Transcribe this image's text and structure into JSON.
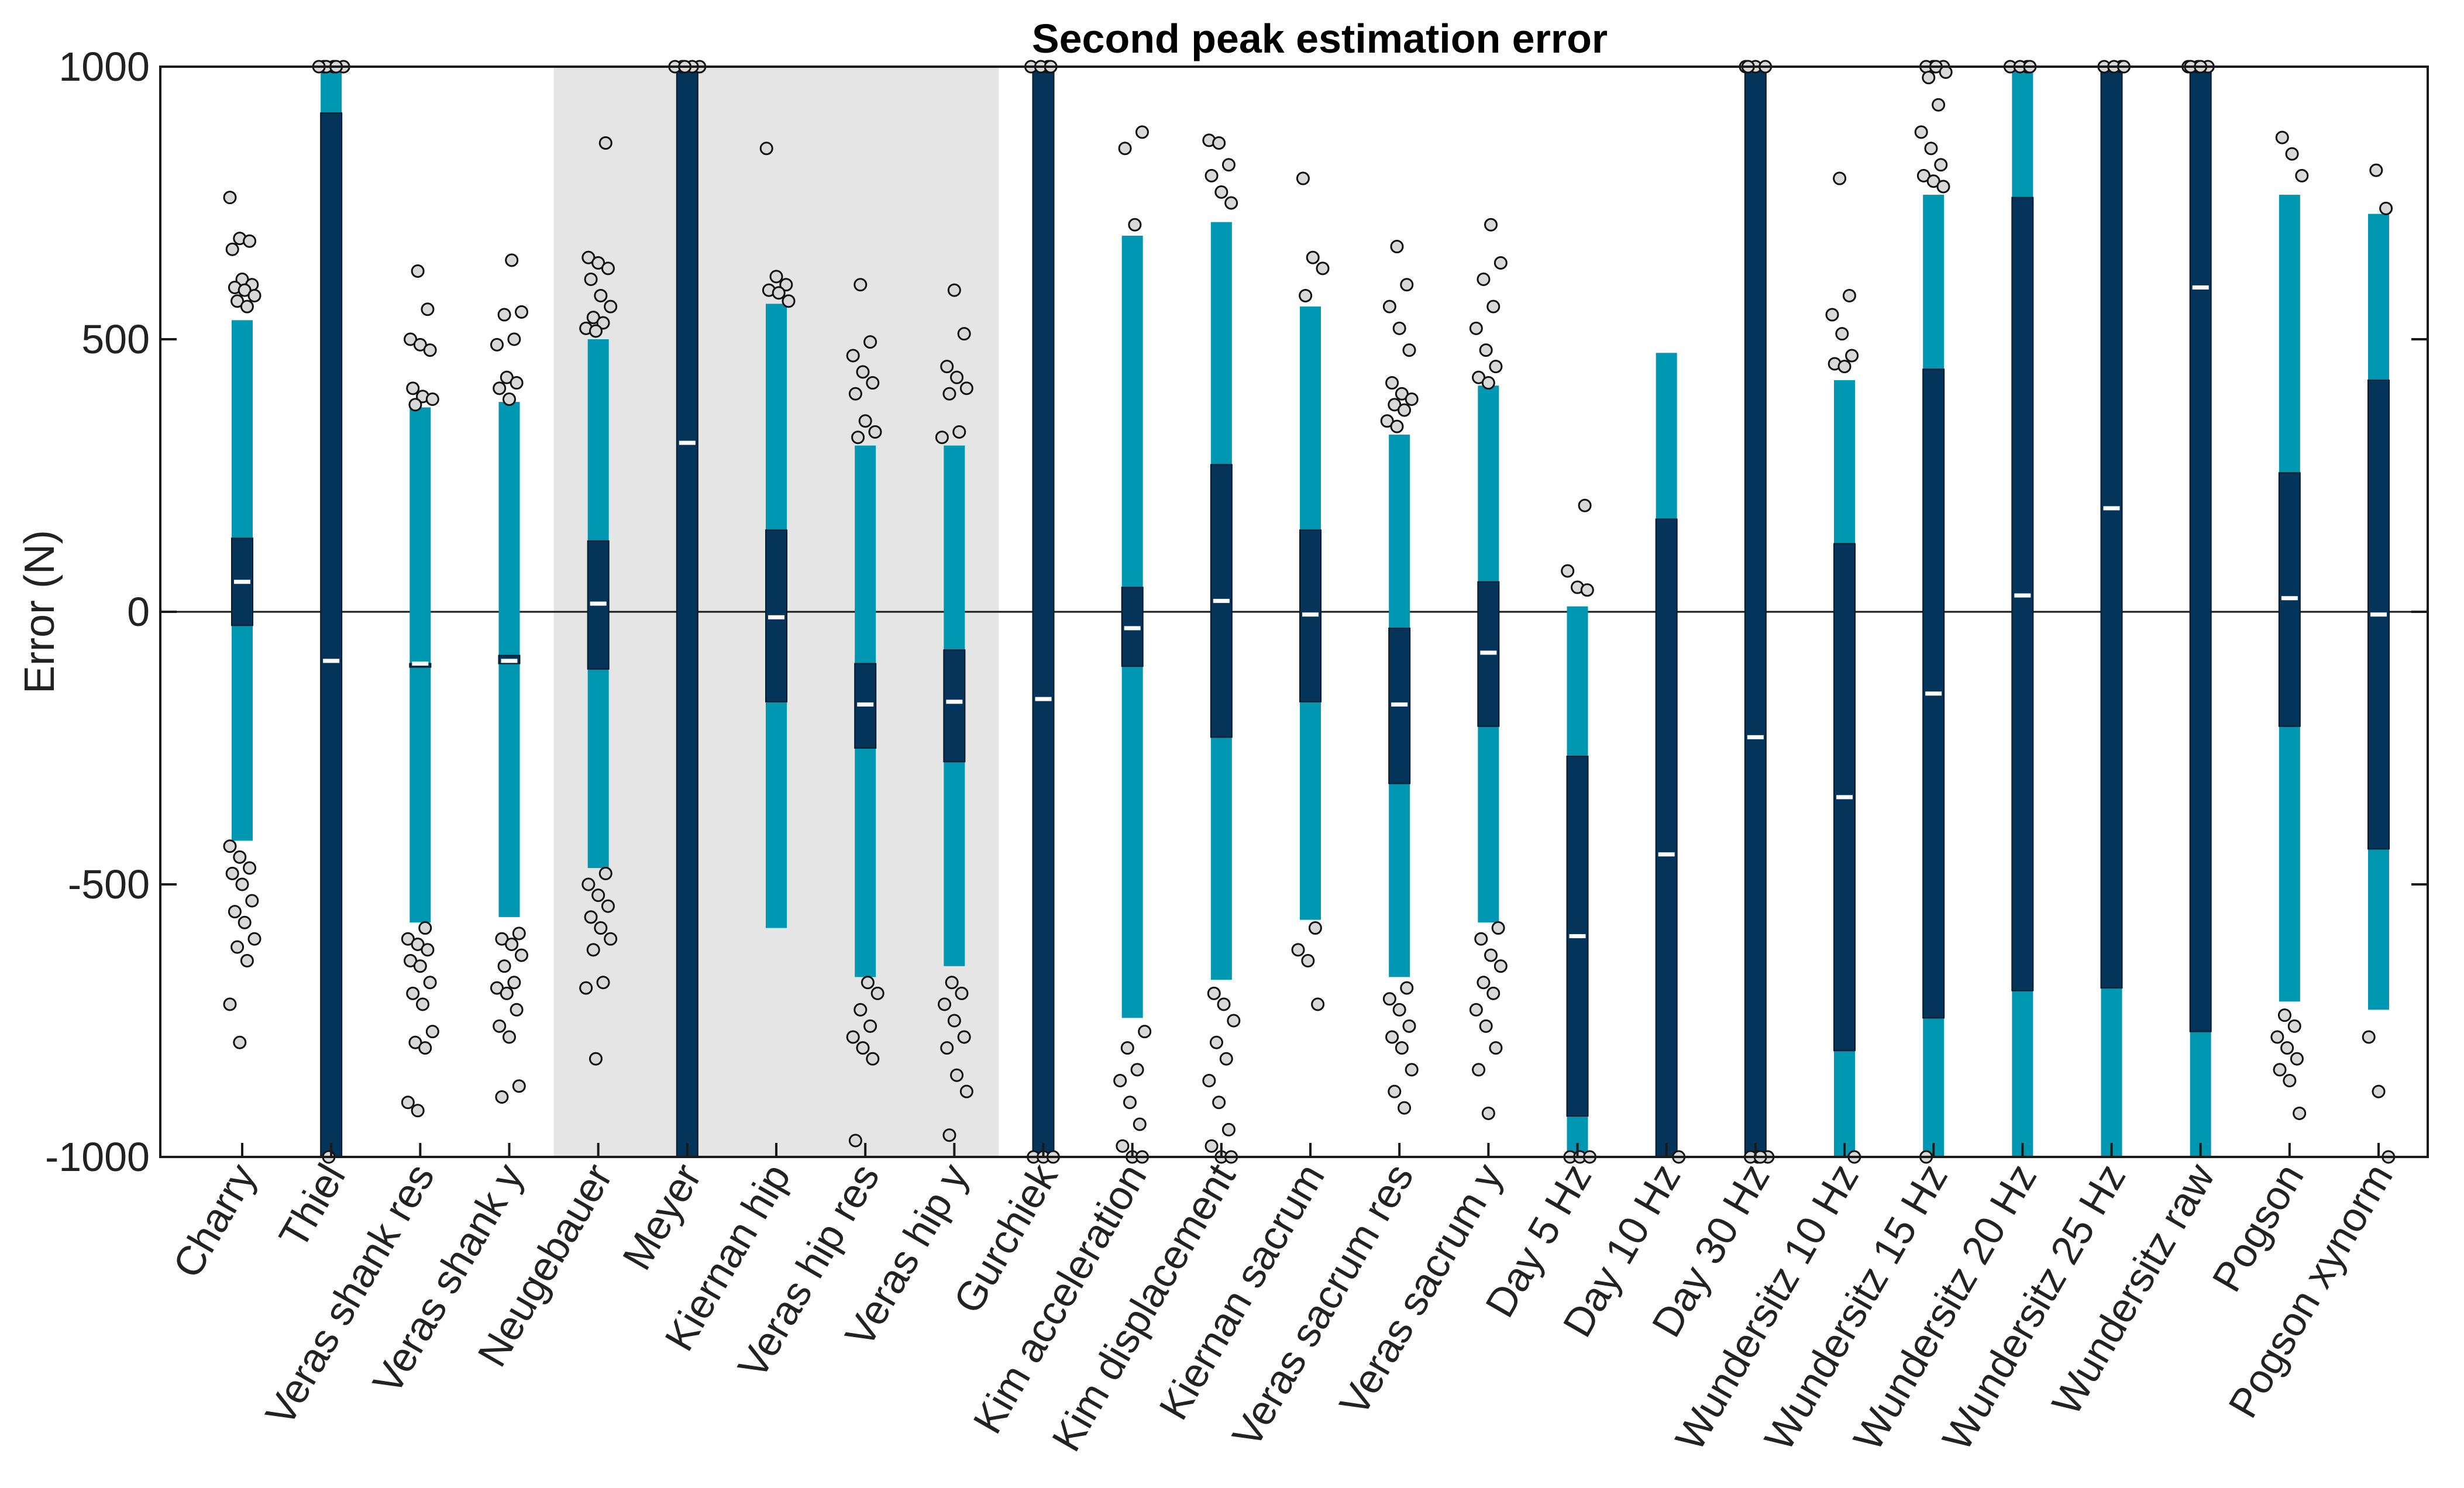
{
  "chart_data": {
    "type": "box",
    "title": "Second peak estimation error",
    "xlabel": "",
    "ylabel": "Error (N)",
    "ylim": [
      -1000,
      1000
    ],
    "yticks": [
      -1000,
      -500,
      0,
      500,
      1000
    ],
    "shaded_groups": [
      {
        "from": "Neugebauer",
        "to": "Veras hip y"
      }
    ],
    "colors": {
      "light": "#0097B2",
      "dark": "#04345A",
      "shade": "#E5E5E5",
      "outlier_fill": "#D9D9D9"
    },
    "categories": [
      "Charry",
      "Thiel",
      "Veras shank res",
      "Veras shank y",
      "Neugebauer",
      "Meyer",
      "Kiernan hip",
      "Veras hip res",
      "Veras hip y",
      "Gurchiek",
      "Kim acceleration",
      "Kim displacement",
      "Kiernan sacrum",
      "Veras sacrum res",
      "Veras sacrum y",
      "Day 5 Hz",
      "Day 10 Hz",
      "Day 30 Hz",
      "Wundersitz 10 Hz",
      "Wundersitz 15 Hz",
      "Wundersitz 20 Hz",
      "Wundersitz 25 Hz",
      "Wundersitz raw",
      "Pogson",
      "Pogson xynorm"
    ],
    "boxes": [
      {
        "name": "Charry",
        "whisker_low": -420,
        "q1": -25,
        "median": 55,
        "q3": 135,
        "whisker_high": 535,
        "outliers": [
          760,
          685,
          680,
          665,
          610,
          600,
          595,
          590,
          580,
          570,
          560,
          -430,
          -450,
          -470,
          -480,
          -500,
          -530,
          -550,
          -570,
          -600,
          -615,
          -640,
          -720,
          -790
        ]
      },
      {
        "name": "Thiel",
        "whisker_low": -1000,
        "q1": -1000,
        "median": -90,
        "q3": 915,
        "whisker_high": 1000,
        "outliers": [
          1000,
          1000,
          1000,
          1000,
          1000,
          1000,
          -1000
        ]
      },
      {
        "name": "Veras shank res",
        "whisker_low": -570,
        "q1": -95,
        "median": -95,
        "q3": -95,
        "whisker_high": 375,
        "outliers": [
          625,
          555,
          500,
          490,
          480,
          410,
          395,
          390,
          380,
          -580,
          -600,
          -610,
          -620,
          -640,
          -650,
          -680,
          -700,
          -720,
          -770,
          -790,
          -800,
          -900,
          -915
        ]
      },
      {
        "name": "Veras shank y",
        "whisker_low": -560,
        "q1": -95,
        "median": -90,
        "q3": -80,
        "whisker_high": 385,
        "outliers": [
          645,
          550,
          545,
          500,
          490,
          430,
          420,
          410,
          390,
          -590,
          -600,
          -610,
          -630,
          -650,
          -680,
          -690,
          -700,
          -730,
          -760,
          -780,
          -870,
          -890
        ]
      },
      {
        "name": "Neugebauer",
        "whisker_low": -470,
        "q1": -105,
        "median": 15,
        "q3": 130,
        "whisker_high": 500,
        "outliers": [
          860,
          650,
          640,
          630,
          610,
          580,
          560,
          540,
          530,
          520,
          515,
          -480,
          -500,
          -520,
          -540,
          -560,
          -580,
          -600,
          -620,
          -680,
          -690,
          -820
        ]
      },
      {
        "name": "Meyer",
        "whisker_low": -1000,
        "q1": -1000,
        "median": 310,
        "q3": 1000,
        "whisker_high": 1000,
        "outliers": [
          1000,
          1000,
          1000,
          1000,
          1000
        ]
      },
      {
        "name": "Kiernan hip",
        "whisker_low": -580,
        "q1": -165,
        "median": -10,
        "q3": 150,
        "whisker_high": 565,
        "outliers": [
          850,
          615,
          600,
          590,
          585,
          570
        ]
      },
      {
        "name": "Veras hip res",
        "whisker_low": -670,
        "q1": -250,
        "median": -170,
        "q3": -95,
        "whisker_high": 305,
        "outliers": [
          600,
          495,
          470,
          440,
          420,
          400,
          350,
          330,
          320,
          -680,
          -700,
          -730,
          -760,
          -780,
          -800,
          -820,
          -970
        ]
      },
      {
        "name": "Veras hip y",
        "whisker_low": -650,
        "q1": -275,
        "median": -165,
        "q3": -70,
        "whisker_high": 305,
        "outliers": [
          590,
          510,
          450,
          430,
          410,
          400,
          330,
          320,
          -680,
          -700,
          -720,
          -750,
          -780,
          -800,
          -850,
          -880,
          -960
        ]
      },
      {
        "name": "Gurchiek",
        "whisker_low": -1000,
        "q1": -1000,
        "median": -160,
        "q3": 1000,
        "whisker_high": 1000,
        "outliers": [
          1000,
          1000,
          1000,
          1000,
          -1000,
          -1000,
          -1000
        ]
      },
      {
        "name": "Kim acceleration",
        "whisker_low": -745,
        "q1": -100,
        "median": -30,
        "q3": 45,
        "whisker_high": 690,
        "outliers": [
          880,
          850,
          710,
          -770,
          -800,
          -840,
          -860,
          -900,
          -940,
          -980,
          -1000,
          -1000
        ]
      },
      {
        "name": "Kim displacement",
        "whisker_low": -675,
        "q1": -230,
        "median": 20,
        "q3": 270,
        "whisker_high": 715,
        "outliers": [
          865,
          860,
          820,
          800,
          770,
          750,
          -700,
          -720,
          -750,
          -790,
          -820,
          -860,
          -900,
          -950,
          -980,
          -1000,
          -1000
        ]
      },
      {
        "name": "Kiernan sacrum",
        "whisker_low": -565,
        "q1": -165,
        "median": -5,
        "q3": 150,
        "whisker_high": 560,
        "outliers": [
          795,
          650,
          630,
          580,
          -580,
          -620,
          -640,
          -720
        ]
      },
      {
        "name": "Veras sacrum res",
        "whisker_low": -670,
        "q1": -315,
        "median": -170,
        "q3": -30,
        "whisker_high": 325,
        "outliers": [
          670,
          600,
          560,
          520,
          480,
          420,
          400,
          390,
          380,
          370,
          350,
          340,
          -690,
          -710,
          -730,
          -760,
          -780,
          -800,
          -840,
          -880,
          -910
        ]
      },
      {
        "name": "Veras sacrum y",
        "whisker_low": -570,
        "q1": -210,
        "median": -75,
        "q3": 55,
        "whisker_high": 415,
        "outliers": [
          710,
          640,
          610,
          560,
          520,
          480,
          450,
          430,
          420,
          -580,
          -600,
          -630,
          -650,
          -680,
          -700,
          -730,
          -760,
          -800,
          -840,
          -920
        ]
      },
      {
        "name": "Day 5 Hz",
        "whisker_low": -1000,
        "q1": -925,
        "median": -595,
        "q3": -265,
        "whisker_high": 10,
        "outliers": [
          195,
          75,
          45,
          40,
          -1000,
          -1000,
          -1000
        ]
      },
      {
        "name": "Day 10 Hz",
        "whisker_low": -1000,
        "q1": -1000,
        "median": -445,
        "q3": 170,
        "whisker_high": 475,
        "outliers": [
          -1000
        ]
      },
      {
        "name": "Day 30 Hz",
        "whisker_low": -1000,
        "q1": -1000,
        "median": -230,
        "q3": 1000,
        "whisker_high": 1000,
        "outliers": [
          1000,
          1000,
          1000,
          1000,
          -1000,
          -1000,
          -1000,
          -1000
        ]
      },
      {
        "name": "Wundersitz 10 Hz",
        "whisker_low": -1000,
        "q1": -805,
        "median": -340,
        "q3": 125,
        "whisker_high": 425,
        "outliers": [
          795,
          580,
          545,
          510,
          470,
          455,
          450,
          -1000
        ]
      },
      {
        "name": "Wundersitz 15 Hz",
        "whisker_low": -1000,
        "q1": -745,
        "median": -150,
        "q3": 445,
        "whisker_high": 765,
        "outliers": [
          1000,
          1000,
          1000,
          1000,
          990,
          980,
          930,
          880,
          850,
          820,
          800,
          790,
          780,
          -1000
        ]
      },
      {
        "name": "Wundersitz 20 Hz",
        "whisker_low": -1000,
        "q1": -695,
        "median": 30,
        "q3": 760,
        "whisker_high": 1000,
        "outliers": [
          1000,
          1000,
          1000,
          1000
        ]
      },
      {
        "name": "Wundersitz 25 Hz",
        "whisker_low": -1000,
        "q1": -690,
        "median": 190,
        "q3": 1000,
        "whisker_high": 1000,
        "outliers": [
          1000,
          1000,
          1000,
          1000
        ]
      },
      {
        "name": "Wundersitz raw",
        "whisker_low": -1000,
        "q1": -770,
        "median": 595,
        "q3": 1000,
        "whisker_high": 1000,
        "outliers": [
          1000,
          1000,
          1000,
          1000,
          1000
        ]
      },
      {
        "name": "Pogson",
        "whisker_low": -715,
        "q1": -210,
        "median": 25,
        "q3": 255,
        "whisker_high": 765,
        "outliers": [
          870,
          840,
          800,
          -740,
          -760,
          -780,
          -800,
          -820,
          -840,
          -860,
          -920
        ]
      },
      {
        "name": "Pogson xynorm",
        "whisker_low": -730,
        "q1": -435,
        "median": -5,
        "q3": 425,
        "whisker_high": 730,
        "outliers": [
          810,
          740,
          -780,
          -880,
          -1000
        ]
      }
    ]
  }
}
